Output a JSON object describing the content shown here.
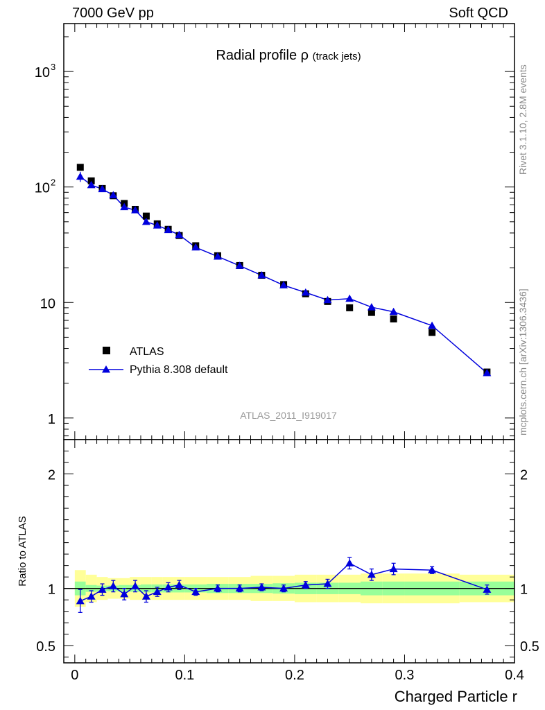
{
  "header": {
    "left": "7000 GeV pp",
    "right": "Soft QCD"
  },
  "side_labels": {
    "rivet": "Rivet 3.1.10,  2.8M events",
    "source": "mcplots.cern.ch [arXiv:1306.3436]"
  },
  "chart_data": {
    "type": "scatter",
    "title": "Radial profile",
    "title_symbol": "ρ",
    "title_suffix": "(track jets)",
    "analysis_id": "ATLAS_2011_I919017",
    "xlabel": "Charged Particle r",
    "ratio_ylabel": "Ratio to ATLAS",
    "x_ticks": [
      "0",
      "0.1",
      "0.2",
      "0.3",
      "0.4"
    ],
    "xlim": [
      -0.01,
      0.4
    ],
    "main": {
      "yscale": "log",
      "ylim": [
        0.65,
        2600
      ],
      "y_tick_labels": [
        {
          "value": 1,
          "label": "1"
        },
        {
          "value": 10,
          "label": "10"
        },
        {
          "value": 100,
          "label": "10",
          "exp": "2"
        },
        {
          "value": 1000,
          "label": "10",
          "exp": "3"
        }
      ]
    },
    "ratio": {
      "ylim": [
        0.35,
        2.3
      ],
      "y_ticks": [
        0.5,
        1,
        2
      ],
      "y_tick_labels": [
        "0.5",
        "1",
        "2"
      ]
    },
    "legend": {
      "position": "bottom-left"
    },
    "bins": [
      {
        "lo": 0.0,
        "hi": 0.01
      },
      {
        "lo": 0.01,
        "hi": 0.02
      },
      {
        "lo": 0.02,
        "hi": 0.03
      },
      {
        "lo": 0.03,
        "hi": 0.04
      },
      {
        "lo": 0.04,
        "hi": 0.05
      },
      {
        "lo": 0.05,
        "hi": 0.06
      },
      {
        "lo": 0.06,
        "hi": 0.07
      },
      {
        "lo": 0.07,
        "hi": 0.08
      },
      {
        "lo": 0.08,
        "hi": 0.09
      },
      {
        "lo": 0.09,
        "hi": 0.1
      },
      {
        "lo": 0.1,
        "hi": 0.12
      },
      {
        "lo": 0.12,
        "hi": 0.14
      },
      {
        "lo": 0.14,
        "hi": 0.16
      },
      {
        "lo": 0.16,
        "hi": 0.18
      },
      {
        "lo": 0.18,
        "hi": 0.2
      },
      {
        "lo": 0.2,
        "hi": 0.22
      },
      {
        "lo": 0.22,
        "hi": 0.24
      },
      {
        "lo": 0.24,
        "hi": 0.26
      },
      {
        "lo": 0.26,
        "hi": 0.28
      },
      {
        "lo": 0.28,
        "hi": 0.3
      },
      {
        "lo": 0.3,
        "hi": 0.35
      },
      {
        "lo": 0.35,
        "hi": 0.4
      }
    ],
    "series": [
      {
        "name": "ATLAS",
        "color": "#000000",
        "marker": "square",
        "x": [
          0.005,
          0.015,
          0.025,
          0.035,
          0.045,
          0.055,
          0.065,
          0.075,
          0.085,
          0.095,
          0.11,
          0.13,
          0.15,
          0.17,
          0.19,
          0.21,
          0.23,
          0.25,
          0.27,
          0.29,
          0.325,
          0.375
        ],
        "y": [
          148,
          113,
          97,
          84,
          72,
          64,
          56,
          48,
          43,
          38,
          31,
          25.4,
          20.9,
          17.2,
          14.3,
          11.9,
          10.2,
          9.0,
          8.2,
          7.2,
          5.5,
          2.5
        ],
        "stat_band": [
          0.06,
          0.03,
          0.025,
          0.025,
          0.03,
          0.03,
          0.035,
          0.035,
          0.035,
          0.035,
          0.035,
          0.04,
          0.04,
          0.04,
          0.045,
          0.05,
          0.05,
          0.05,
          0.06,
          0.06,
          0.06,
          0.06
        ],
        "total_band": [
          0.16,
          0.12,
          0.1,
          0.09,
          0.09,
          0.1,
          0.1,
          0.1,
          0.1,
          0.1,
          0.1,
          0.1,
          0.1,
          0.11,
          0.11,
          0.12,
          0.12,
          0.12,
          0.13,
          0.13,
          0.13,
          0.12
        ]
      },
      {
        "name": "Pythia 8.308 default",
        "color": "#0000dd",
        "marker": "triangle",
        "x": [
          0.005,
          0.015,
          0.025,
          0.035,
          0.045,
          0.055,
          0.065,
          0.075,
          0.085,
          0.095,
          0.11,
          0.13,
          0.15,
          0.17,
          0.19,
          0.21,
          0.23,
          0.25,
          0.27,
          0.29,
          0.325,
          0.375
        ],
        "y": [
          123,
          104,
          96,
          85,
          67,
          63,
          50,
          46.5,
          42.5,
          38.5,
          30,
          25,
          20.8,
          17.2,
          14.1,
          12.2,
          10.5,
          10.8,
          9.1,
          8.3,
          6.3,
          2.45
        ],
        "ratio": [
          0.89,
          0.93,
          0.99,
          1.02,
          0.95,
          1.02,
          0.93,
          0.97,
          1.01,
          1.03,
          0.97,
          1.0,
          1.0,
          1.01,
          1.0,
          1.03,
          1.04,
          1.22,
          1.12,
          1.17,
          1.16,
          0.99
        ],
        "ratio_err": [
          0.1,
          0.05,
          0.05,
          0.05,
          0.05,
          0.05,
          0.05,
          0.04,
          0.04,
          0.04,
          0.03,
          0.03,
          0.03,
          0.03,
          0.03,
          0.03,
          0.04,
          0.05,
          0.05,
          0.05,
          0.03,
          0.04
        ]
      }
    ]
  }
}
